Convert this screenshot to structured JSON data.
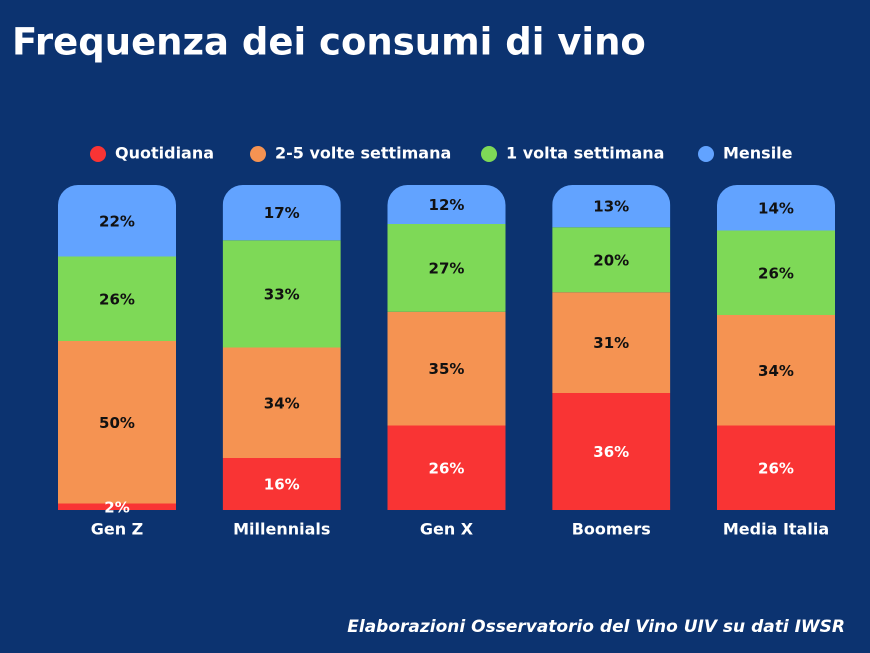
{
  "chart_data": {
    "type": "stacked-bar",
    "title": "Frequenza dei consumi di vino",
    "source": "Elaborazioni Osservatorio del Vino UIV su dati IWSR",
    "categories": [
      "Gen Z",
      "Millennials",
      "Gen X",
      "Boomers",
      "Media Italia"
    ],
    "series": [
      {
        "name": "Quotidiana",
        "color": "#f93434",
        "values": [
          2,
          16,
          26,
          36,
          26
        ],
        "value_labels": [
          "2%",
          "16%",
          "26%",
          "36%",
          "26%"
        ]
      },
      {
        "name": "2-5 volte settimana",
        "color": "#f59352",
        "values": [
          50,
          34,
          35,
          31,
          34
        ],
        "value_labels": [
          "50%",
          "34%",
          "35%",
          "31%",
          "34%"
        ]
      },
      {
        "name": "1 volta settimana",
        "color": "#7ed957",
        "values": [
          26,
          33,
          27,
          20,
          26
        ],
        "value_labels": [
          "26%",
          "33%",
          "27%",
          "20%",
          "26%"
        ]
      },
      {
        "name": "Mensile",
        "color": "#62a3ff",
        "values": [
          22,
          17,
          12,
          13,
          14
        ],
        "value_labels": [
          "22%",
          "17%",
          "12%",
          "13%",
          "14%"
        ]
      }
    ],
    "legend": "top"
  }
}
